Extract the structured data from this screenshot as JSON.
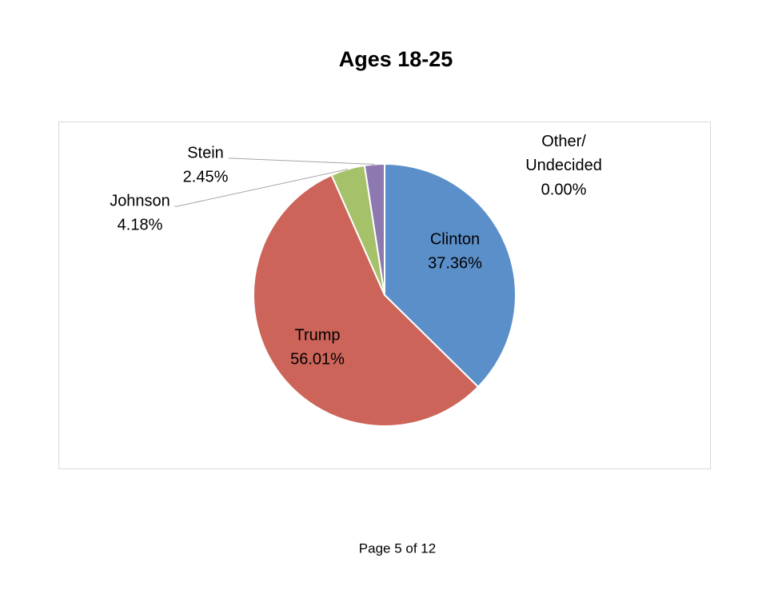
{
  "chart_data": {
    "type": "pie",
    "title": "Ages 18-25",
    "categories": [
      "Clinton",
      "Trump",
      "Johnson",
      "Stein",
      "Other/Undecided"
    ],
    "values": [
      37.36,
      56.01,
      4.18,
      2.45,
      0.0
    ],
    "value_labels": [
      "37.36%",
      "56.01%",
      "4.18%",
      "2.45%",
      "0.00%"
    ],
    "colors": [
      "#5b8fc9",
      "#cc6459",
      "#a5c26b",
      "#8e78b0",
      "#4bacc6"
    ]
  },
  "footer": "Page 5 of 12"
}
